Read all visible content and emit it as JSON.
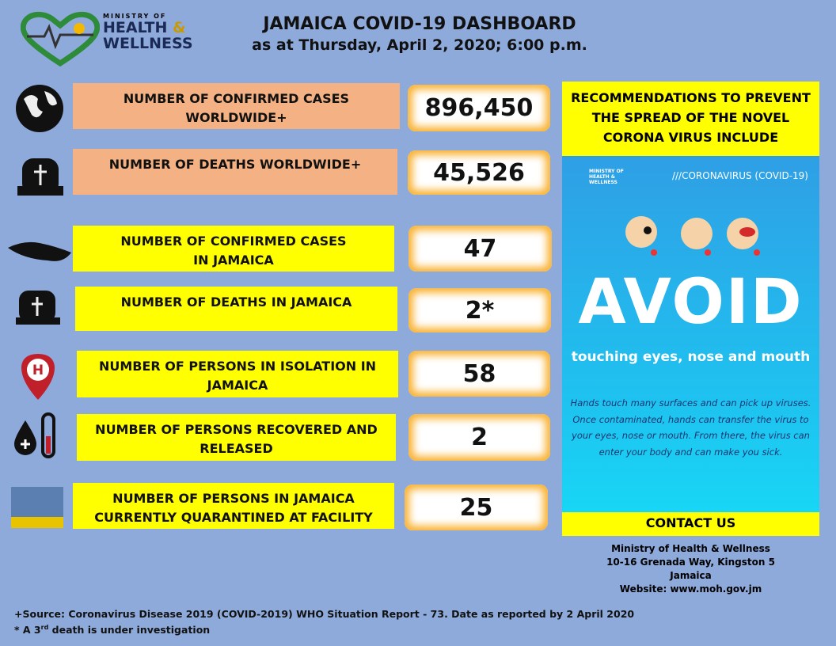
{
  "logo": {
    "line1": "MINISTRY OF",
    "line2": "HEALTH",
    "amp": "&",
    "line3": "WELLNESS"
  },
  "header": {
    "title": "JAMAICA COVID-19 DASHBOARD",
    "subtitle": "as at Thursday, April 2, 2020; 6:00 p.m."
  },
  "rows": [
    {
      "label": [
        "NUMBER OF CONFIRMED CASES",
        "WORLDWIDE+"
      ],
      "value": "896,450"
    },
    {
      "label": [
        "NUMBER OF DEATHS WORLDWIDE+"
      ],
      "value": "45,526"
    },
    {
      "label": [
        "NUMBER OF CONFIRMED CASES",
        "IN JAMAICA"
      ],
      "value": "47"
    },
    {
      "label": [
        "NUMBER OF DEATHS IN JAMAICA"
      ],
      "value": "2*"
    },
    {
      "label": [
        "NUMBER OF PERSONS IN ISOLATION IN",
        "JAMAICA"
      ],
      "value": "58"
    },
    {
      "label": [
        "NUMBER OF PERSONS RECOVERED AND",
        "RELEASED"
      ],
      "value": "2"
    },
    {
      "label": [
        "NUMBER OF PERSONS IN JAMAICA",
        "CURRENTLY QUARANTINED AT FACILITY"
      ],
      "value": "25"
    }
  ],
  "recommendations": {
    "heading": [
      "RECOMMENDATIONS TO PREVENT",
      "THE SPREAD OF THE NOVEL",
      "CORONA VIRUS INCLUDE"
    ],
    "poster": {
      "logo": [
        "MINISTRY OF",
        "HEALTH &",
        "WELLNESS"
      ],
      "tag": "///CORONAVIRUS (COVID-19)",
      "headline": "AVOID",
      "subhead": "touching eyes, nose and mouth",
      "body": [
        "Hands touch many surfaces and can pick up viruses.",
        "Once contaminated, hands can transfer the virus to",
        "your eyes, nose or mouth. From there, the virus can",
        "enter your body and can make you sick."
      ]
    },
    "contact_heading": "CONTACT US",
    "contact": [
      "Ministry of Health & Wellness",
      "10-16 Grenada Way, Kingston 5",
      "Jamaica",
      "Website: www.moh.gov.jm"
    ]
  },
  "footer": {
    "source": "+Source: Coronavirus Disease 2019 (COVID-2019) WHO Situation Report - 73. Date as reported by 2 April 2020",
    "note_start": "* A 3",
    "note_sup": "rd",
    "note_end": " death is under investigation"
  }
}
